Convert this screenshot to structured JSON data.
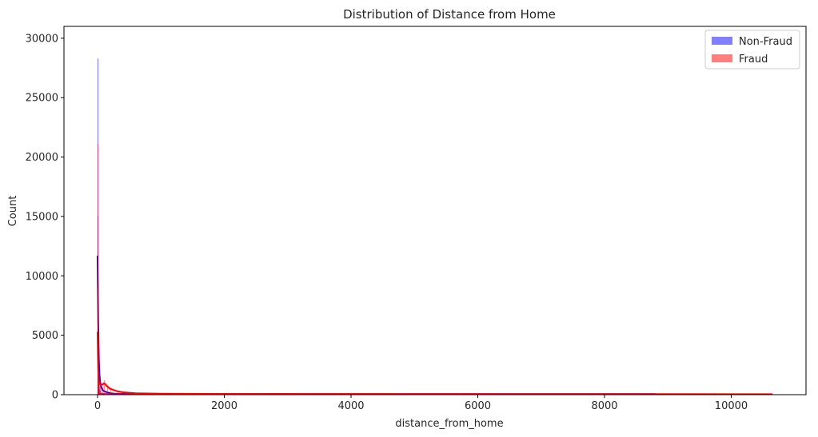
{
  "chart_data": {
    "type": "bar",
    "title": "Distribution of Distance from Home",
    "xlabel": "distance_from_home",
    "ylabel": "Count",
    "xlim": [
      -530,
      11180
    ],
    "ylim": [
      0,
      31000
    ],
    "x_ticks": [
      0,
      2000,
      4000,
      6000,
      8000,
      10000
    ],
    "y_ticks": [
      0,
      5000,
      10000,
      15000,
      20000,
      25000,
      30000
    ],
    "grid": false,
    "legend_position": "top-right",
    "series": [
      {
        "name": "Non-Fraud",
        "color": "#0000ff",
        "bin_width": 2,
        "x_start": 0,
        "x_end": 8800,
        "histogram": {
          "x": [
            0,
            2,
            4,
            6,
            8,
            10,
            15,
            20,
            30,
            40,
            60,
            80,
            100,
            150,
            200,
            300
          ],
          "counts": [
            28300,
            15000,
            8000,
            4000,
            2500,
            1500,
            900,
            600,
            400,
            300,
            200,
            150,
            100,
            60,
            40,
            20
          ]
        },
        "kde": {
          "x": [
            0,
            5,
            10,
            20,
            30,
            40,
            60,
            80,
            100,
            150,
            200,
            300,
            500,
            1000,
            2000,
            4000,
            6000,
            8000,
            8800
          ],
          "y": [
            11700,
            9000,
            6000,
            3000,
            1700,
            1100,
            600,
            400,
            300,
            200,
            120,
            70,
            40,
            20,
            10,
            5,
            3,
            2,
            1
          ]
        }
      },
      {
        "name": "Fraud",
        "color": "#ff0000",
        "bin_width": 3,
        "x_start": 0,
        "x_end": 10650,
        "histogram": {
          "x": [
            0,
            3,
            6,
            9,
            12,
            20,
            30,
            40,
            60,
            80,
            100,
            150,
            200,
            300
          ],
          "counts": [
            21100,
            9000,
            4000,
            2000,
            1300,
            1000,
            800,
            700,
            600,
            700,
            1200,
            800,
            400,
            200
          ]
        },
        "kde": {
          "x": [
            0,
            5,
            10,
            20,
            30,
            50,
            80,
            100,
            120,
            150,
            200,
            300,
            400,
            600,
            1000,
            2000,
            4000,
            6000,
            8000,
            10000,
            10650
          ],
          "y": [
            5300,
            3500,
            2200,
            1200,
            900,
            850,
            850,
            950,
            900,
            700,
            500,
            300,
            200,
            120,
            80,
            60,
            50,
            40,
            30,
            20,
            15
          ]
        }
      }
    ]
  }
}
